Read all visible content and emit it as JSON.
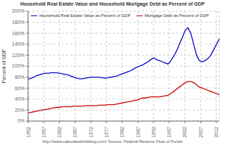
{
  "chart_data": {
    "type": "line",
    "title": "Household Real Estate Value and Household Mortgage Debt as Percent of GDP",
    "ylabel": "Percent of GDP",
    "x": [
      1952,
      1952.9104,
      1953.8209,
      1954.7313,
      1955.6418,
      1956.5522,
      1957.4627,
      1958.3731,
      1959.2836,
      1960.194,
      1961.1045,
      1962.0149,
      1962.9254,
      1963.8358,
      1964.7463,
      1965.6567,
      1966.5672,
      1967.4776,
      1968.3881,
      1969.2985,
      1970.209,
      1971.1194,
      1972.0299,
      1972.9403,
      1973.8507,
      1974.7612,
      1975.6716,
      1976.5821,
      1977.4925,
      1978.403,
      1979.3134,
      1980.2239,
      1981.1343,
      1982.0448,
      1982.9552,
      1983.8657,
      1984.7761,
      1985.6866,
      1986.597,
      1987.5075,
      1988.4179,
      1989.3284,
      1990.2388,
      1991.1493,
      1992.0597,
      1992.9701,
      1993.8806,
      1994.791,
      1995.7015,
      1996.6119,
      1997.5224,
      1998.4328,
      1999.3433,
      2000.2537,
      2001.1642,
      2002.0746,
      2002.9851,
      2003.8955,
      2004.806,
      2005.7164,
      2006.6269,
      2007.5373,
      2008.4478,
      2009.3582,
      2010.2687,
      2011.1791,
      2012.0896,
      2013
    ],
    "series": [
      {
        "name": "Household Real Estate Value as Percent of GDP",
        "color": "#0000cc",
        "values": [
          0.76,
          0.78,
          0.8,
          0.83,
          0.84,
          0.86,
          0.87,
          0.87,
          0.88,
          0.88,
          0.88,
          0.87,
          0.86,
          0.85,
          0.84,
          0.82,
          0.8,
          0.78,
          0.77,
          0.77,
          0.78,
          0.79,
          0.8,
          0.8,
          0.8,
          0.8,
          0.79,
          0.78,
          0.79,
          0.8,
          0.81,
          0.82,
          0.84,
          0.86,
          0.88,
          0.9,
          0.92,
          0.95,
          0.98,
          1.0,
          1.02,
          1.05,
          1.08,
          1.12,
          1.15,
          1.12,
          1.1,
          1.08,
          1.06,
          1.04,
          1.1,
          1.18,
          1.28,
          1.4,
          1.52,
          1.65,
          1.7,
          1.6,
          1.4,
          1.2,
          1.1,
          1.08,
          1.1,
          1.14,
          1.2,
          1.3,
          1.4,
          1.5
        ]
      },
      {
        "name": "Mortgage Debt as Percent of GDP",
        "color": "#cc0000",
        "values": [
          0.15,
          0.16,
          0.17,
          0.18,
          0.19,
          0.2,
          0.21,
          0.22,
          0.23,
          0.24,
          0.25,
          0.25,
          0.26,
          0.26,
          0.26,
          0.26,
          0.27,
          0.27,
          0.27,
          0.27,
          0.28,
          0.28,
          0.28,
          0.28,
          0.28,
          0.29,
          0.29,
          0.29,
          0.3,
          0.3,
          0.3,
          0.31,
          0.32,
          0.33,
          0.34,
          0.35,
          0.36,
          0.37,
          0.38,
          0.4,
          0.42,
          0.42,
          0.43,
          0.44,
          0.44,
          0.44,
          0.44,
          0.45,
          0.46,
          0.47,
          0.5,
          0.54,
          0.58,
          0.62,
          0.66,
          0.7,
          0.72,
          0.72,
          0.7,
          0.66,
          0.62,
          0.6,
          0.58,
          0.56,
          0.54,
          0.52,
          0.5,
          0.48
        ]
      }
    ],
    "xlim": [
      1952,
      2013
    ],
    "xticks": [
      1952,
      1957,
      1962,
      1967,
      1972,
      1977,
      1982,
      1987,
      1992,
      1997,
      2002,
      2007,
      2012
    ],
    "ylim": [
      0,
      2.0
    ],
    "yticks": [
      {
        "value": 0.0,
        "label": "0%"
      },
      {
        "value": 0.2,
        "label": "20%"
      },
      {
        "value": 0.4,
        "label": "40%"
      },
      {
        "value": 0.6,
        "label": "60%"
      },
      {
        "value": 0.8,
        "label": "80%"
      },
      {
        "value": 1.0,
        "label": "100%"
      },
      {
        "value": 1.2,
        "label": "120%"
      },
      {
        "value": 1.4,
        "label": "140%"
      },
      {
        "value": 1.6,
        "label": "160%"
      },
      {
        "value": 1.8,
        "label": "180%"
      },
      {
        "value": 2.0,
        "label": "200%"
      }
    ],
    "grid": true,
    "legend": "upper left",
    "annotations": [
      "http://www.calculatedriskblog.com/   Source: Federal Reserve Flow of Funds"
    ]
  }
}
